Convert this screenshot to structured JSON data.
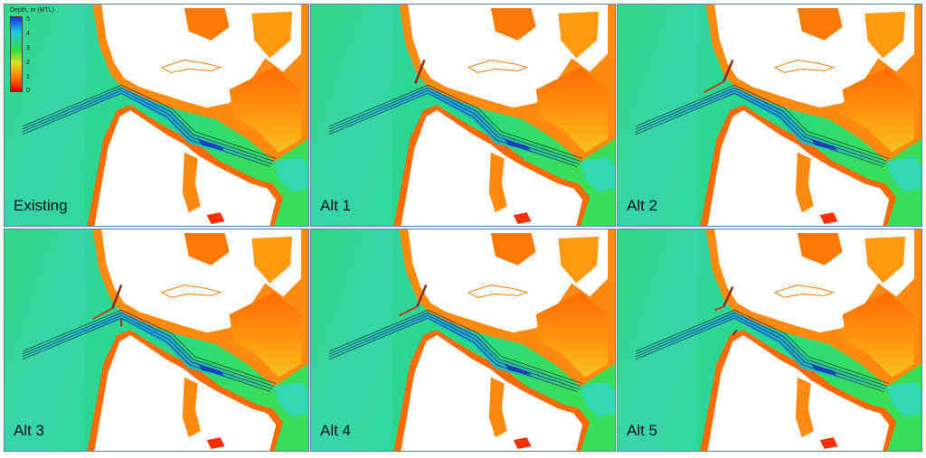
{
  "legend": {
    "title": "Depth, m (MTL)",
    "ticks": [
      "5",
      "4",
      "3",
      "2",
      "1",
      "0"
    ],
    "colors": [
      "#1030e0",
      "#20c8e0",
      "#30e040",
      "#e0e020",
      "#ff8000",
      "#e00000"
    ]
  },
  "panels": [
    {
      "label": "Existing",
      "structure": "none"
    },
    {
      "label": "Alt 1",
      "structure": "single-jetty"
    },
    {
      "label": "Alt 2",
      "structure": "jetty-with-spur"
    },
    {
      "label": "Alt 3",
      "structure": "twin-jetties"
    },
    {
      "label": "Alt 4",
      "structure": "jetty-with-spur"
    },
    {
      "label": "Alt 5",
      "structure": "jetty-with-spur-and-groin"
    }
  ]
}
